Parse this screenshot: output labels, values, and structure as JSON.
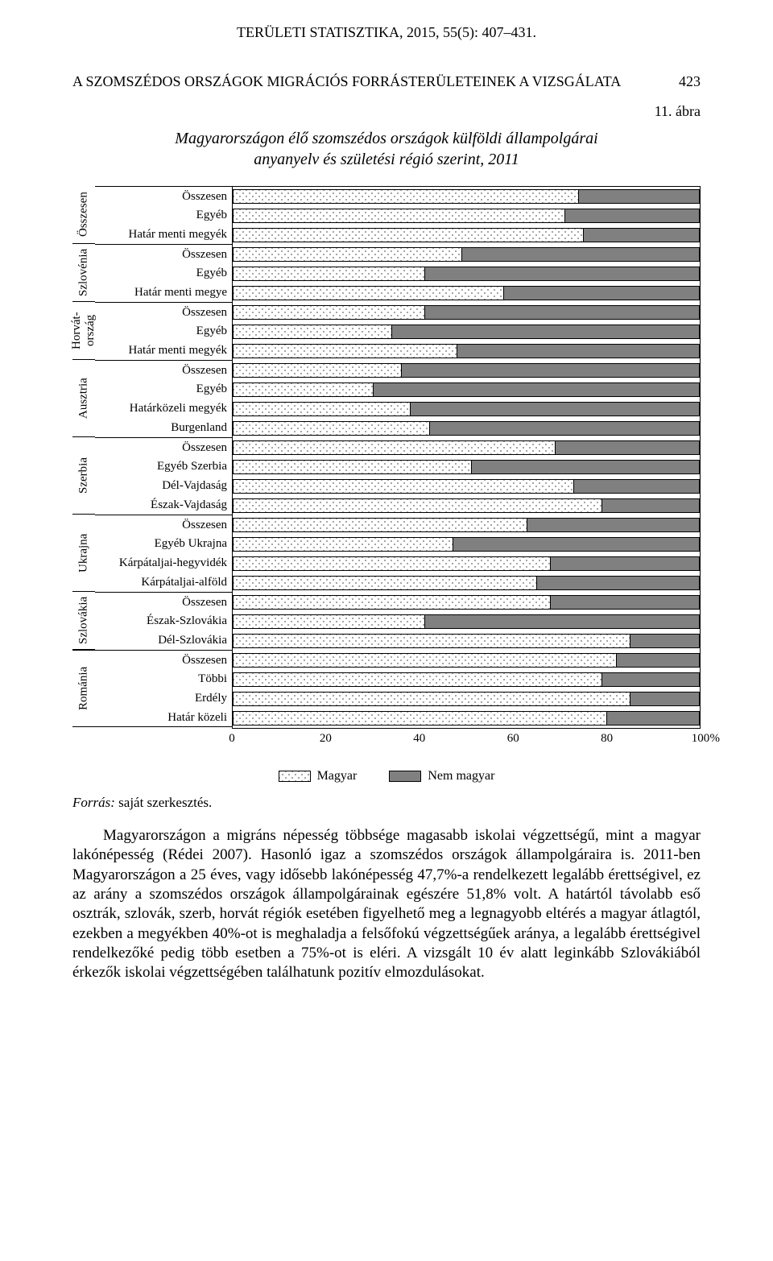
{
  "running_head": "TERÜLETI STATISZTIKA, 2015, 55(5): 407–431.",
  "section_title": "A SZOMSZÉDOS ORSZÁGOK MIGRÁCIÓS FORRÁSTERÜLETEINEK A VIZSGÁLATA",
  "page_number": "423",
  "figure_label": "11. ábra",
  "chart_title_line1": "Magyarországon élő szomszédos országok külföldi állampolgárai",
  "chart_title_line2": "anyanyelv és születési régió szerint, 2011",
  "x_ticks": [
    "0",
    "20",
    "40",
    "60",
    "80",
    "100"
  ],
  "x_suffix": "%",
  "legend": {
    "magyar": "Magyar",
    "nem": "Nem magyar"
  },
  "colors": {
    "nem_fill": "#808080",
    "border": "#000000"
  },
  "source_label": "Forrás:",
  "source_text": " saját szerkesztés.",
  "body": "Magyarországon a migráns népesség többsége magasabb iskolai végzettségű, mint a magyar lakónépesség (Rédei 2007). Hasonló igaz a szomszédos országok állampolgáraira is. 2011-ben Magyarországon a 25 éves, vagy idősebb lakónépesség 47,7%-a rendelkezett legalább érettségivel, ez az arány a szomszédos országok állampolgárainak egészére 51,8% volt. A határtól távolabb eső osztrák, szlovák, szerb, horvát régiók esetében figyelhető meg a legnagyobb eltérés a magyar átlagtól, ezekben a megyékben 40%-ot is meghaladja a felsőfokú végzettségűek aránya, a legalább érettségivel rendelkezőké pedig több esetben a 75%-ot is eléri. A vizsgált 10 év alatt leginkább Szlovákiából érkezők iskolai végzettségében találhatunk pozitív elmozdulásokat.",
  "groups": [
    {
      "name": "Összesen",
      "rows": [
        {
          "label": "Összesen",
          "magyar": 74
        },
        {
          "label": "Egyéb",
          "magyar": 71
        },
        {
          "label": "Határ menti megyék",
          "magyar": 75
        }
      ]
    },
    {
      "name": "Szlovénia",
      "rows": [
        {
          "label": "Összesen",
          "magyar": 49
        },
        {
          "label": "Egyéb",
          "magyar": 41
        },
        {
          "label": "Határ menti megye",
          "magyar": 58
        }
      ]
    },
    {
      "name": "Horvát-\nország",
      "rows": [
        {
          "label": "Összesen",
          "magyar": 41
        },
        {
          "label": "Egyéb",
          "magyar": 34
        },
        {
          "label": "Határ menti megyék",
          "magyar": 48
        }
      ]
    },
    {
      "name": "Ausztria",
      "rows": [
        {
          "label": "Összesen",
          "magyar": 36
        },
        {
          "label": "Egyéb",
          "magyar": 30
        },
        {
          "label": "Határközeli megyék",
          "magyar": 38
        },
        {
          "label": "Burgenland",
          "magyar": 42
        }
      ]
    },
    {
      "name": "Szerbia",
      "rows": [
        {
          "label": "Összesen",
          "magyar": 69
        },
        {
          "label": "Egyéb Szerbia",
          "magyar": 51
        },
        {
          "label": "Dél-Vajdaság",
          "magyar": 73
        },
        {
          "label": "Észak-Vajdaság",
          "magyar": 79
        }
      ]
    },
    {
      "name": "Ukrajna",
      "rows": [
        {
          "label": "Összesen",
          "magyar": 63
        },
        {
          "label": "Egyéb Ukrajna",
          "magyar": 47
        },
        {
          "label": "Kárpátaljai-hegyvidék",
          "magyar": 68
        },
        {
          "label": "Kárpátaljai-alföld",
          "magyar": 65
        }
      ]
    },
    {
      "name": "Szlovákia",
      "rows": [
        {
          "label": "Összesen",
          "magyar": 68
        },
        {
          "label": "Észak-Szlovákia",
          "magyar": 41
        },
        {
          "label": "Dél-Szlovákia",
          "magyar": 85
        }
      ]
    },
    {
      "name": "Románia",
      "rows": [
        {
          "label": "Összesen",
          "magyar": 82
        },
        {
          "label": "Többi",
          "magyar": 79
        },
        {
          "label": "Erdély",
          "magyar": 85
        },
        {
          "label": "Határ közeli",
          "magyar": 80
        }
      ]
    }
  ]
}
